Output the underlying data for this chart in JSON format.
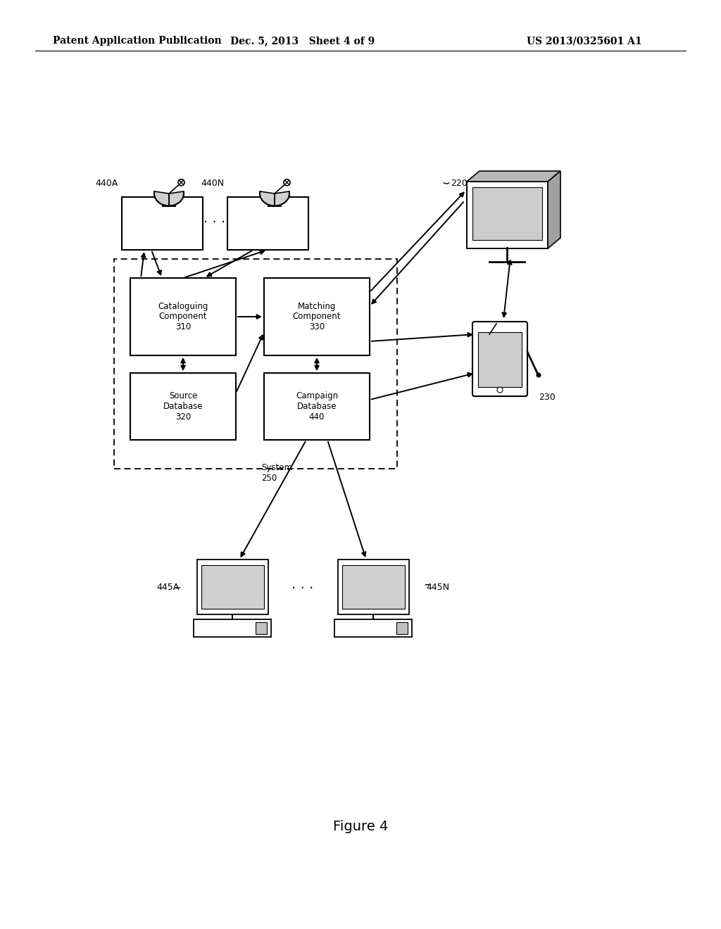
{
  "header_left": "Patent Application Publication",
  "header_mid": "Dec. 5, 2013   Sheet 4 of 9",
  "header_right": "US 2013/0325601 A1",
  "figure_label": "Figure 4",
  "bg_color": "#ffffff",
  "text_color": "#000000"
}
